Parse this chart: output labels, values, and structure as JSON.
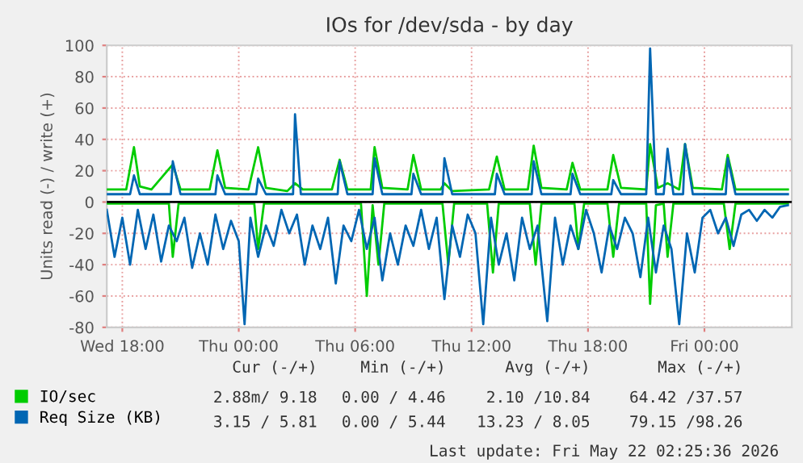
{
  "chart_data": {
    "type": "line",
    "title": "IOs for /dev/sda - by day",
    "ylabel": "Units read (-) / write (+)",
    "xlim": [
      "2026-05-20T17:12",
      "2026-05-22T04:30"
    ],
    "xticks": [
      {
        "value": "2026-05-20T18:00",
        "label": "Wed 18:00"
      },
      {
        "value": "2026-05-21T00:00",
        "label": "Thu 00:00"
      },
      {
        "value": "2026-05-21T06:00",
        "label": "Thu 06:00"
      },
      {
        "value": "2026-05-21T12:00",
        "label": "Thu 12:00"
      },
      {
        "value": "2026-05-21T18:00",
        "label": "Thu 18:00"
      },
      {
        "value": "2026-05-22T00:00",
        "label": "Fri 00:00"
      }
    ],
    "ylim": [
      -80,
      100
    ],
    "yticks": [
      -80,
      -60,
      -40,
      -20,
      0,
      20,
      40,
      60,
      80,
      100
    ],
    "grid": true,
    "legend": "bottom left",
    "line_style": "solid",
    "ref_lines": [
      {
        "axis": "y",
        "value": 0,
        "color": "#000000"
      }
    ],
    "series": [
      {
        "name": "IO/sec",
        "color": "#00cc00",
        "x": [
          "2026-05-20T17:12",
          "2026-05-20T18:12",
          "2026-05-20T18:36",
          "2026-05-20T18:54",
          "2026-05-20T19:30",
          "2026-05-20T20:36",
          "2026-05-20T21:00",
          "2026-05-20T22:30",
          "2026-05-20T22:54",
          "2026-05-20T23:18",
          "2026-05-21T00:30",
          "2026-05-21T01:00",
          "2026-05-21T01:24",
          "2026-05-21T02:30",
          "2026-05-21T02:54",
          "2026-05-21T03:18",
          "2026-05-21T04:48",
          "2026-05-21T05:12",
          "2026-05-21T05:36",
          "2026-05-21T06:48",
          "2026-05-21T07:00",
          "2026-05-21T07:24",
          "2026-05-21T08:42",
          "2026-05-21T09:00",
          "2026-05-21T09:24",
          "2026-05-21T10:24",
          "2026-05-21T10:36",
          "2026-05-21T11:00",
          "2026-05-21T12:54",
          "2026-05-21T13:18",
          "2026-05-21T13:42",
          "2026-05-21T14:54",
          "2026-05-21T15:12",
          "2026-05-21T15:36",
          "2026-05-21T16:54",
          "2026-05-21T17:12",
          "2026-05-21T17:36",
          "2026-05-21T19:00",
          "2026-05-21T19:18",
          "2026-05-21T19:42",
          "2026-05-21T21:00",
          "2026-05-21T21:12",
          "2026-05-21T21:36",
          "2026-05-21T22:06",
          "2026-05-21T22:42",
          "2026-05-21T23:00",
          "2026-05-21T23:24",
          "2026-05-22T00:54",
          "2026-05-22T01:12",
          "2026-05-22T01:36",
          "2026-05-22T04:18"
        ],
        "values": [
          8,
          8,
          35,
          10,
          8,
          24,
          8,
          8,
          33,
          9,
          8,
          35,
          9,
          7,
          12,
          8,
          8,
          27,
          8,
          8,
          35,
          9,
          8,
          30,
          8,
          8,
          12,
          7,
          8,
          29,
          8,
          8,
          36,
          9,
          8,
          25,
          8,
          8,
          30,
          9,
          8,
          37,
          9,
          12,
          8,
          37,
          9,
          8,
          30,
          8,
          8
        ]
      },
      {
        "color": "#00cc00",
        "x": [
          "2026-05-20T17:12",
          "2026-05-20T20:24",
          "2026-05-20T20:36",
          "2026-05-20T20:54",
          "2026-05-21T00:48",
          "2026-05-21T01:00",
          "2026-05-21T01:18",
          "2026-05-21T06:18",
          "2026-05-21T06:36",
          "2026-05-21T06:54",
          "2026-05-21T07:12",
          "2026-05-21T07:30",
          "2026-05-21T10:30",
          "2026-05-21T10:48",
          "2026-05-21T11:06",
          "2026-05-21T12:48",
          "2026-05-21T13:06",
          "2026-05-21T13:24",
          "2026-05-21T15:00",
          "2026-05-21T15:18",
          "2026-05-21T15:36",
          "2026-05-21T17:18",
          "2026-05-21T17:30",
          "2026-05-21T17:48",
          "2026-05-21T19:00",
          "2026-05-21T19:18",
          "2026-05-21T19:36",
          "2026-05-21T21:00",
          "2026-05-21T21:12",
          "2026-05-21T21:30",
          "2026-05-21T21:54",
          "2026-05-21T22:06",
          "2026-05-21T22:24",
          "2026-05-22T01:00",
          "2026-05-22T01:18",
          "2026-05-22T01:36",
          "2026-05-22T04:18"
        ],
        "values": [
          -1,
          -1,
          -35,
          -1,
          -1,
          -30,
          -1,
          -1,
          -60,
          -2,
          -40,
          -1,
          -1,
          -40,
          -1,
          -1,
          -45,
          -1,
          -1,
          -40,
          -1,
          -1,
          -30,
          -1,
          -1,
          -35,
          -1,
          -1,
          -65,
          -2,
          -1,
          -35,
          -1,
          -1,
          -30,
          -1,
          -1
        ]
      },
      {
        "name": "Req Size (KB)",
        "color": "#0066b3",
        "x": [
          "2026-05-20T17:12",
          "2026-05-20T18:24",
          "2026-05-20T18:36",
          "2026-05-20T18:54",
          "2026-05-20T20:30",
          "2026-05-20T20:36",
          "2026-05-20T21:00",
          "2026-05-20T22:48",
          "2026-05-20T22:54",
          "2026-05-20T23:18",
          "2026-05-21T00:54",
          "2026-05-21T01:00",
          "2026-05-21T01:24",
          "2026-05-21T02:48",
          "2026-05-21T02:54",
          "2026-05-21T03:12",
          "2026-05-21T05:06",
          "2026-05-21T05:12",
          "2026-05-21T05:36",
          "2026-05-21T06:54",
          "2026-05-21T07:00",
          "2026-05-21T07:24",
          "2026-05-21T08:54",
          "2026-05-21T09:00",
          "2026-05-21T09:24",
          "2026-05-21T10:30",
          "2026-05-21T10:36",
          "2026-05-21T11:00",
          "2026-05-21T13:12",
          "2026-05-21T13:18",
          "2026-05-21T13:42",
          "2026-05-21T15:06",
          "2026-05-21T15:12",
          "2026-05-21T15:36",
          "2026-05-21T17:06",
          "2026-05-21T17:12",
          "2026-05-21T17:36",
          "2026-05-21T19:12",
          "2026-05-21T19:18",
          "2026-05-21T19:42",
          "2026-05-21T21:00",
          "2026-05-21T21:12",
          "2026-05-21T21:30",
          "2026-05-21T21:54",
          "2026-05-21T22:06",
          "2026-05-21T22:24",
          "2026-05-21T22:54",
          "2026-05-21T23:00",
          "2026-05-21T23:24",
          "2026-05-22T01:06",
          "2026-05-22T01:12",
          "2026-05-22T01:36",
          "2026-05-22T04:18"
        ],
        "values": [
          5,
          5,
          17,
          5,
          5,
          26,
          5,
          5,
          17,
          5,
          5,
          15,
          5,
          5,
          56,
          5,
          5,
          26,
          5,
          5,
          28,
          5,
          5,
          18,
          5,
          5,
          28,
          5,
          5,
          18,
          5,
          5,
          26,
          5,
          5,
          18,
          5,
          5,
          14,
          5,
          5,
          98,
          5,
          5,
          34,
          5,
          5,
          37,
          5,
          5,
          28,
          5,
          5
        ]
      },
      {
        "color": "#0066b3",
        "x": [
          "2026-05-20T17:12",
          "2026-05-20T17:36",
          "2026-05-20T18:00",
          "2026-05-20T18:24",
          "2026-05-20T18:48",
          "2026-05-20T19:12",
          "2026-05-20T19:36",
          "2026-05-20T20:00",
          "2026-05-20T20:24",
          "2026-05-20T20:48",
          "2026-05-20T21:12",
          "2026-05-20T21:36",
          "2026-05-20T22:00",
          "2026-05-20T22:24",
          "2026-05-20T22:48",
          "2026-05-20T23:12",
          "2026-05-20T23:36",
          "2026-05-21T00:00",
          "2026-05-21T00:18",
          "2026-05-21T00:36",
          "2026-05-21T01:00",
          "2026-05-21T01:24",
          "2026-05-21T01:48",
          "2026-05-21T02:12",
          "2026-05-21T02:36",
          "2026-05-21T03:00",
          "2026-05-21T03:24",
          "2026-05-21T03:48",
          "2026-05-21T04:12",
          "2026-05-21T04:36",
          "2026-05-21T05:00",
          "2026-05-21T05:24",
          "2026-05-21T05:48",
          "2026-05-21T06:12",
          "2026-05-21T06:36",
          "2026-05-21T07:00",
          "2026-05-21T07:24",
          "2026-05-21T07:48",
          "2026-05-21T08:12",
          "2026-05-21T08:36",
          "2026-05-21T09:00",
          "2026-05-21T09:24",
          "2026-05-21T09:48",
          "2026-05-21T10:12",
          "2026-05-21T10:36",
          "2026-05-21T11:00",
          "2026-05-21T11:24",
          "2026-05-21T11:48",
          "2026-05-21T12:12",
          "2026-05-21T12:36",
          "2026-05-21T13:00",
          "2026-05-21T13:24",
          "2026-05-21T13:48",
          "2026-05-21T14:12",
          "2026-05-21T14:36",
          "2026-05-21T15:00",
          "2026-05-21T15:24",
          "2026-05-21T15:54",
          "2026-05-21T16:18",
          "2026-05-21T16:42",
          "2026-05-21T17:06",
          "2026-05-21T17:30",
          "2026-05-21T17:54",
          "2026-05-21T18:18",
          "2026-05-21T18:42",
          "2026-05-21T19:06",
          "2026-05-21T19:30",
          "2026-05-21T19:54",
          "2026-05-21T20:18",
          "2026-05-21T20:42",
          "2026-05-21T21:06",
          "2026-05-21T21:30",
          "2026-05-21T21:54",
          "2026-05-21T22:18",
          "2026-05-21T22:42",
          "2026-05-21T23:06",
          "2026-05-21T23:30",
          "2026-05-21T23:54",
          "2026-05-22T00:18",
          "2026-05-22T00:42",
          "2026-05-22T01:06",
          "2026-05-22T01:30",
          "2026-05-22T01:54",
          "2026-05-22T02:18",
          "2026-05-22T02:42",
          "2026-05-22T03:06",
          "2026-05-22T03:30",
          "2026-05-22T03:54",
          "2026-05-22T04:18"
        ],
        "values": [
          -5,
          -35,
          -10,
          -40,
          -5,
          -30,
          -8,
          -38,
          -15,
          -25,
          -10,
          -42,
          -20,
          -40,
          -8,
          -30,
          -12,
          -25,
          -78,
          -10,
          -35,
          -15,
          -28,
          -5,
          -20,
          -8,
          -40,
          -15,
          -30,
          -10,
          -52,
          -15,
          -25,
          -5,
          -30,
          -10,
          -50,
          -20,
          -40,
          -15,
          -28,
          -5,
          -30,
          -10,
          -62,
          -15,
          -35,
          -8,
          -20,
          -78,
          -10,
          -40,
          -20,
          -50,
          -10,
          -30,
          -15,
          -76,
          -10,
          -40,
          -15,
          -30,
          -5,
          -20,
          -45,
          -15,
          -30,
          -10,
          -20,
          -48,
          -10,
          -45,
          -15,
          -30,
          -78,
          -20,
          -45,
          -10,
          -5,
          -20,
          -10,
          -28,
          -8,
          -5,
          -12,
          -5,
          -10,
          -3,
          -2
        ]
      }
    ],
    "annotations": [
      "Cur (-/+)",
      "Min (-/+)",
      "Avg (-/+)",
      "Max (-/+)",
      "2.88m/ 9.18",
      "0.00 / 4.46",
      "2.10 /10.84",
      "64.42 /37.57",
      "3.15 / 5.81",
      "0.00 / 5.44",
      "13.23 / 8.05",
      "79.15 /98.26",
      "Last update: Fri May 22 02:25:36 2026"
    ]
  }
}
